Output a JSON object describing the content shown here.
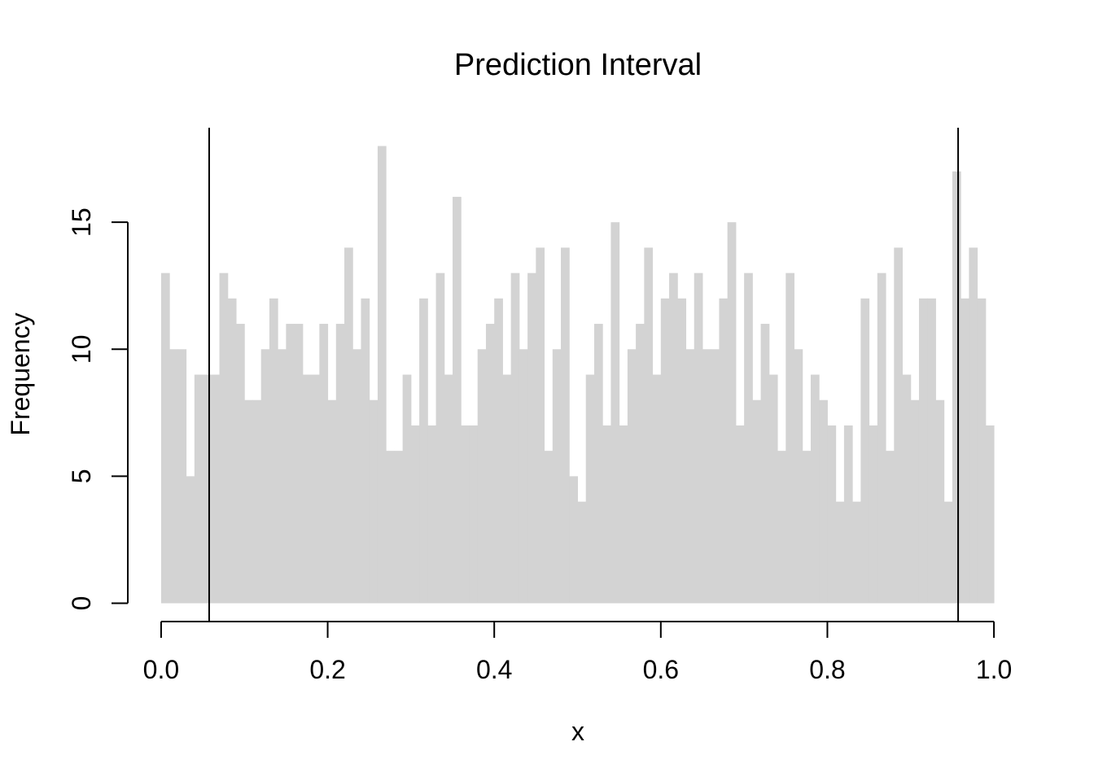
{
  "chart_data": {
    "type": "histogram",
    "title": "Prediction Interval",
    "x_label": "x",
    "y_label": "Frequency",
    "bins": [
      0,
      0.01,
      0.02,
      0.03,
      0.04,
      0.05,
      0.06,
      0.07,
      0.08,
      0.09,
      0.1,
      0.11,
      0.12,
      0.13,
      0.14,
      0.15,
      0.16,
      0.17,
      0.18,
      0.19,
      0.2,
      0.21,
      0.22,
      0.23,
      0.24,
      0.25,
      0.26,
      0.27,
      0.28,
      0.29,
      0.3,
      0.31,
      0.32,
      0.33,
      0.34,
      0.35,
      0.36,
      0.37,
      0.38,
      0.39,
      0.4,
      0.41,
      0.42,
      0.43,
      0.44,
      0.45,
      0.46,
      0.47,
      0.48,
      0.49,
      0.5,
      0.51,
      0.52,
      0.53,
      0.54,
      0.55,
      0.56,
      0.57,
      0.58,
      0.59,
      0.6,
      0.61,
      0.62,
      0.63,
      0.64,
      0.65,
      0.66,
      0.67,
      0.68,
      0.69,
      0.7,
      0.71,
      0.72,
      0.73,
      0.74,
      0.75,
      0.76,
      0.77,
      0.78,
      0.79,
      0.8,
      0.81,
      0.82,
      0.83,
      0.84,
      0.85,
      0.86,
      0.87,
      0.88,
      0.89,
      0.9,
      0.91,
      0.92,
      0.93,
      0.94,
      0.95,
      0.96,
      0.97,
      0.98,
      0.99,
      1
    ],
    "values": [
      13,
      10,
      10,
      5,
      9,
      9,
      9,
      13,
      12,
      11,
      8,
      8,
      10,
      12,
      10,
      11,
      11,
      9,
      9,
      11,
      8,
      11,
      14,
      10,
      12,
      8,
      18,
      6,
      6,
      9,
      7,
      12,
      7,
      13,
      9,
      16,
      7,
      7,
      10,
      11,
      12,
      9,
      13,
      10,
      13,
      14,
      6,
      10,
      14,
      5,
      4,
      9,
      11,
      7,
      15,
      7,
      10,
      11,
      14,
      9,
      12,
      13,
      12,
      10,
      13,
      10,
      10,
      12,
      15,
      7,
      13,
      8,
      11,
      9,
      6,
      13,
      10,
      6,
      9,
      8,
      7,
      4,
      7,
      4,
      12,
      7,
      13,
      6,
      14,
      9,
      8,
      12,
      12,
      8,
      4,
      17,
      12,
      14,
      12,
      7
    ],
    "color": "#d3d3d3",
    "line_color": "#000000",
    "vlines": [
      0.0577,
      0.957
    ],
    "xlim": [
      -0.04,
      1.04
    ],
    "ylim": [
      -0.72,
      18.72
    ],
    "xticks": [
      {
        "value": 0,
        "label": "0.0"
      },
      0.2,
      0.4,
      0.6,
      0.8,
      {
        "value": 1,
        "label": "1.0"
      }
    ],
    "yticks": [
      0,
      5,
      10,
      15
    ]
  }
}
